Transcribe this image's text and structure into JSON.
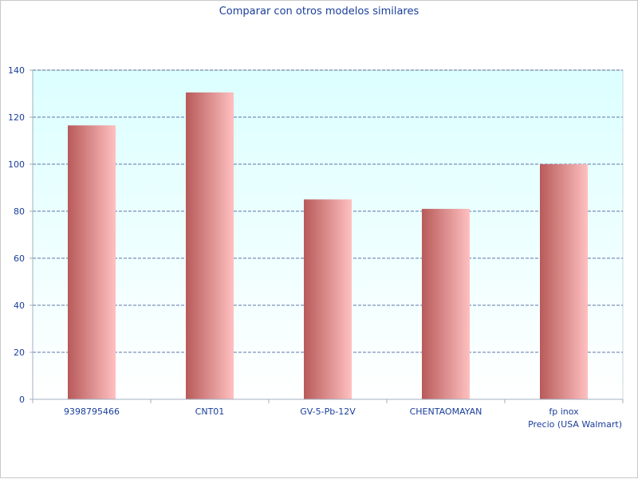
{
  "chart_data": {
    "type": "bar",
    "title": "Comparar con otros modelos similares",
    "xlabel": "Precio (USA Walmart)",
    "ylabel": "",
    "categories": [
      "9398795466",
      "CNT01",
      "GV-5-Pb-12V",
      "CHENTAOMAYAN",
      "fp inox"
    ],
    "values": [
      116.5,
      130.5,
      85,
      81,
      100
    ],
    "ylim": [
      0,
      140
    ],
    "yticks": [
      "0",
      "20",
      "40",
      "60",
      "80",
      "100",
      "120",
      "140"
    ],
    "grid": true,
    "legend": "none",
    "colors": {
      "plot_bg_top": "#dcffff",
      "plot_bg_bottom": "#ffffff",
      "bar_dark": "#b85a5a",
      "bar_light": "#ffc0c0",
      "grid": "#2c4a8a",
      "text": "#1a3e9a"
    }
  }
}
